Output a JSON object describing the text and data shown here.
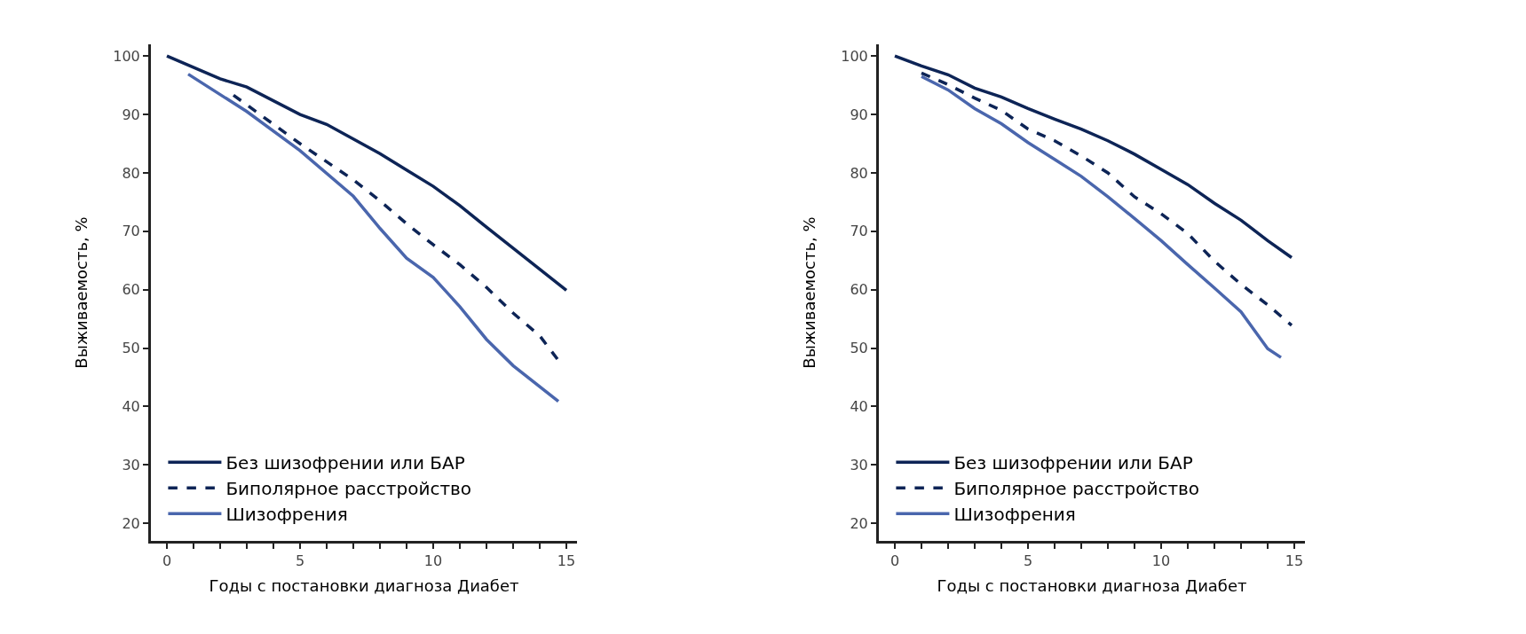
{
  "chart_data": [
    {
      "type": "line",
      "xlabel": "Годы с постановки диагноза Диабет",
      "ylabel": "Выживаемость, %",
      "xlim": [
        -0.6,
        15.4
      ],
      "ylim": [
        17,
        102
      ],
      "xticks": [
        0,
        {
          "value": 1,
          "label": null
        },
        {
          "value": 2,
          "label": null
        },
        {
          "value": 3,
          "label": null
        },
        {
          "value": 4,
          "label": null
        },
        5,
        {
          "value": 6,
          "label": null
        },
        {
          "value": 7,
          "label": null
        },
        {
          "value": 8,
          "label": null
        },
        {
          "value": 9,
          "label": null
        },
        10,
        {
          "value": 11,
          "label": null
        },
        {
          "value": 12,
          "label": null
        },
        {
          "value": 13,
          "label": null
        },
        {
          "value": 14,
          "label": null
        },
        15
      ],
      "yticks": [
        20,
        30,
        40,
        50,
        60,
        70,
        80,
        90,
        100
      ],
      "grid": false,
      "legend": "bottom left",
      "marker": "none",
      "series": [
        {
          "name": "Без шизофрении или БАР",
          "color": "#0d2456",
          "line_style": "solid",
          "x": [
            0,
            2,
            3,
            5,
            6,
            7,
            8,
            9,
            10,
            11,
            12,
            13,
            14,
            15
          ],
          "values": [
            100,
            96.1,
            94.7,
            90,
            88.3,
            85.8,
            83.3,
            80.5,
            77.7,
            74.4,
            70.7,
            67.1,
            63.5,
            59.9
          ]
        },
        {
          "name": "Биполярное расстройство",
          "color": "#0d2456",
          "line_style": "dashed",
          "x": [
            2.5,
            5,
            7,
            8,
            9,
            10,
            11,
            12,
            13,
            14,
            14.7
          ],
          "values": [
            93.3,
            85,
            78.8,
            75.2,
            71.3,
            67.7,
            64.3,
            60.4,
            56,
            52.1,
            47.9
          ]
        },
        {
          "name": "Шизофрения",
          "color": "#4a66ad",
          "line_style": "solid",
          "x": [
            0.8,
            3,
            5,
            7,
            8,
            9,
            10,
            11,
            12,
            13,
            14.7
          ],
          "values": [
            96.9,
            90.5,
            83.8,
            76,
            70.5,
            65.4,
            62.1,
            57.1,
            51.5,
            47,
            40.9
          ]
        }
      ]
    },
    {
      "type": "line",
      "xlabel": "Годы с постановки диагноза Диабет",
      "ylabel": "Выживаемость, %",
      "xlim": [
        -0.6,
        15.4
      ],
      "ylim": [
        17,
        102
      ],
      "xticks": [
        0,
        {
          "value": 1,
          "label": null
        },
        {
          "value": 2,
          "label": null
        },
        {
          "value": 3,
          "label": null
        },
        {
          "value": 4,
          "label": null
        },
        5,
        {
          "value": 6,
          "label": null
        },
        {
          "value": 7,
          "label": null
        },
        {
          "value": 8,
          "label": null
        },
        {
          "value": 9,
          "label": null
        },
        10,
        {
          "value": 11,
          "label": null
        },
        {
          "value": 12,
          "label": null
        },
        {
          "value": 13,
          "label": null
        },
        {
          "value": 14,
          "label": null
        },
        15
      ],
      "yticks": [
        20,
        30,
        40,
        50,
        60,
        70,
        80,
        90,
        100
      ],
      "grid": false,
      "legend": "bottom left",
      "marker": "none",
      "series": [
        {
          "name": "Без шизофрении или БАР",
          "color": "#0d2456",
          "line_style": "solid",
          "x": [
            0,
            1,
            2,
            3,
            4,
            5,
            6,
            7,
            8,
            9,
            10,
            11,
            12,
            13,
            14,
            14.9
          ],
          "values": [
            100,
            98.3,
            96.8,
            94.5,
            93,
            91,
            89.2,
            87.5,
            85.5,
            83.2,
            80.6,
            78,
            74.8,
            71.9,
            68.4,
            65.5
          ]
        },
        {
          "name": "Биполярное расстройство",
          "color": "#0d2456",
          "line_style": "dashed",
          "x": [
            1,
            2,
            3,
            4,
            5,
            6,
            7,
            8,
            9,
            10,
            11,
            12,
            13,
            14,
            14.9
          ],
          "values": [
            97.1,
            95.1,
            92.8,
            90.7,
            87.5,
            85.5,
            82.9,
            80,
            75.9,
            73,
            69.6,
            64.9,
            60.9,
            57.4,
            53.9
          ]
        },
        {
          "name": "Шизофрения",
          "color": "#4a66ad",
          "line_style": "solid",
          "x": [
            1,
            2,
            3,
            4,
            5,
            6,
            7,
            8,
            9,
            10,
            11,
            12,
            13,
            14,
            14.5
          ],
          "values": [
            96.5,
            94.2,
            91,
            88.4,
            85.2,
            82.3,
            79.4,
            75.9,
            72.2,
            68.4,
            64.3,
            60.3,
            56.2,
            49.9,
            48.4
          ]
        }
      ]
    }
  ]
}
